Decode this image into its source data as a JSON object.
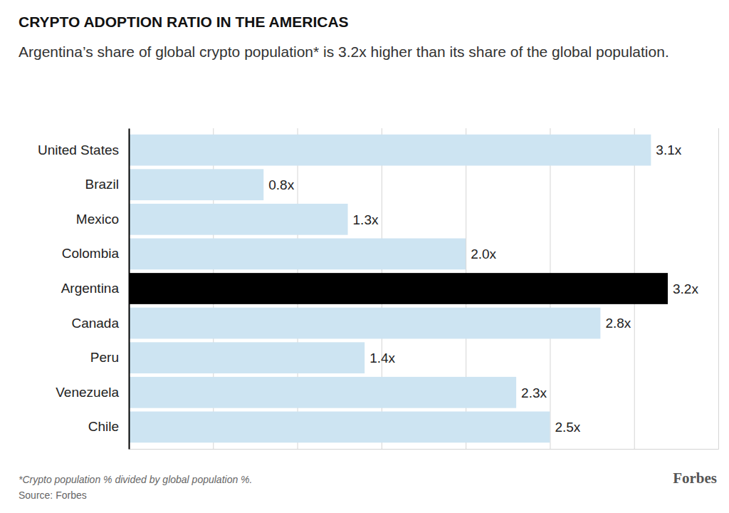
{
  "chart_data": {
    "type": "bar",
    "orientation": "horizontal",
    "title": "CRYPTO ADOPTION RATIO IN THE AMERICAS",
    "subtitle": "Argentina’s share of global crypto population* is 3.2x higher than its share of the global population.",
    "categories": [
      "United States",
      "Brazil",
      "Mexico",
      "Colombia",
      "Argentina",
      "Canada",
      "Peru",
      "Venezuela",
      "Chile"
    ],
    "values": [
      3.1,
      0.8,
      1.3,
      2.0,
      3.2,
      2.8,
      1.4,
      2.3,
      2.5
    ],
    "value_labels": [
      "3.1x",
      "0.8x",
      "1.3x",
      "2.0x",
      "3.2x",
      "2.8x",
      "1.4x",
      "2.3x",
      "2.5x"
    ],
    "colors": [
      "#cde4f2",
      "#cde4f2",
      "#cde4f2",
      "#cde4f2",
      "#000000",
      "#cde4f2",
      "#cde4f2",
      "#cde4f2",
      "#cde4f2"
    ],
    "xlim": [
      0,
      3.5
    ],
    "xticks": [
      0,
      0.5,
      1,
      1.5,
      2,
      2.5,
      3,
      3.5
    ],
    "grid": true,
    "data_labels": true,
    "tick_labels": "y",
    "note": "*Crypto population % divided by global population %.",
    "source": "Source: Forbes",
    "logo": "Forbes"
  }
}
